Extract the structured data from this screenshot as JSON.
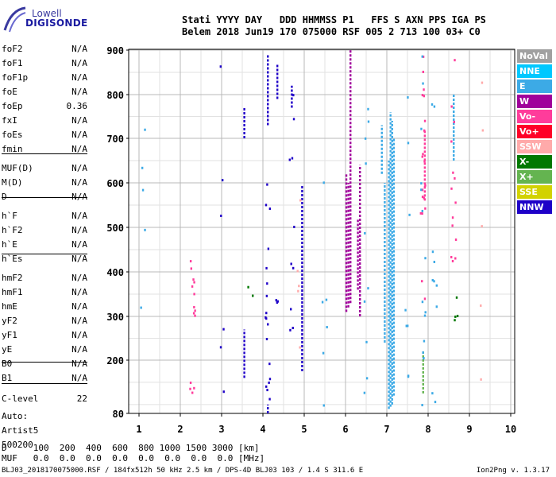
{
  "logo": {
    "line1": "Lowell",
    "line2": "DIGISONDE"
  },
  "header": {
    "line1": "Stati YYYY DAY   DDD HHMMSS P1   FFS S AXN PPS IGA PS",
    "line2": "Belem 2018 Jun19 170 075000 RSF 005 2 713 100 03+ C0"
  },
  "params": [
    {
      "k": "foF2",
      "v": "N/A"
    },
    {
      "k": "foF1",
      "v": "N/A"
    },
    {
      "k": "foF1p",
      "v": "N/A"
    },
    {
      "k": "foE",
      "v": "N/A"
    },
    {
      "k": "foEp",
      "v": "0.36"
    },
    {
      "k": "fxI",
      "v": "N/A"
    },
    {
      "k": "foEs",
      "v": "N/A"
    },
    {
      "k": "fmin",
      "v": "N/A"
    },
    {
      "k": "MUF(D)",
      "v": "N/A"
    },
    {
      "k": "M(D)",
      "v": "N/A"
    },
    {
      "k": "D",
      "v": "N/A"
    },
    {
      "k": "h`F",
      "v": "N/A"
    },
    {
      "k": "h`F2",
      "v": "N/A"
    },
    {
      "k": "h`E",
      "v": "N/A"
    },
    {
      "k": "h`Es",
      "v": "N/A"
    },
    {
      "k": "hmF2",
      "v": "N/A"
    },
    {
      "k": "hmF1",
      "v": "N/A"
    },
    {
      "k": "hmE",
      "v": "N/A"
    },
    {
      "k": "yF2",
      "v": "N/A"
    },
    {
      "k": "yF1",
      "v": "N/A"
    },
    {
      "k": "yE",
      "v": "N/A"
    },
    {
      "k": "B0",
      "v": "N/A"
    },
    {
      "k": "B1",
      "v": "N/A"
    },
    {
      "k": "C-level",
      "v": "22"
    },
    {
      "k": "Auto:",
      "v": ""
    },
    {
      "k": "Artist5",
      "v": ""
    },
    {
      "k": "500200",
      "v": ""
    }
  ],
  "legend": [
    {
      "label": "NoVal",
      "color": "#a0a0a0"
    },
    {
      "label": "NNE",
      "color": "#00c8ff"
    },
    {
      "label": "E",
      "color": "#3caae6"
    },
    {
      "label": "W",
      "color": "#a0009b"
    },
    {
      "label": "Vo-",
      "color": "#ff3c9b"
    },
    {
      "label": "Vo+",
      "color": "#ff0028"
    },
    {
      "label": "SSW",
      "color": "#ffaaaa"
    },
    {
      "label": "X-",
      "color": "#007800"
    },
    {
      "label": "X+",
      "color": "#64b450"
    },
    {
      "label": "SSE",
      "color": "#d2d200"
    },
    {
      "label": "NNW",
      "color": "#1e00c8"
    }
  ],
  "bottom": {
    "line1": "D     100  200  400  600  800 1000 1500 3000 [km]",
    "line2": "MUF   0.0  0.0  0.0  0.0  0.0  0.0  0.0  0.0 [MHz]"
  },
  "footer": {
    "left": "BLJ03_2018170075000.RSF / 184fx512h 50 kHz 2.5 km / DPS-4D BLJ03 103 / 1.4 S 311.6 E",
    "right": "Ion2Png v. 1.3.17"
  },
  "chart_data": {
    "type": "scatter",
    "xlim": [
      0.9,
      10.0
    ],
    "ylim": [
      80,
      900
    ],
    "xticks": [
      1,
      2,
      3,
      4,
      5,
      6,
      7,
      8,
      9,
      10
    ],
    "yticks": [
      80,
      200,
      300,
      400,
      500,
      600,
      700,
      800,
      900
    ],
    "grid": true,
    "xlabel": "",
    "ylabel": "",
    "traces": [
      {
        "x": 7.05,
        "y0": 90,
        "y1": 650,
        "color": "#3caae6"
      },
      {
        "x": 7.09,
        "y0": 95,
        "y1": 760,
        "color": "#3caae6"
      },
      {
        "x": 7.13,
        "y0": 100,
        "y1": 740,
        "color": "#3caae6"
      },
      {
        "x": 7.17,
        "y0": 120,
        "y1": 700,
        "color": "#3caae6"
      },
      {
        "x": 6.95,
        "y0": 240,
        "y1": 600,
        "color": "#3caae6"
      },
      {
        "x": 6.88,
        "y0": 620,
        "y1": 730,
        "color": "#3caae6"
      },
      {
        "x": 6.02,
        "y0": 310,
        "y1": 620,
        "color": "#a0009b"
      },
      {
        "x": 6.07,
        "y0": 320,
        "y1": 600,
        "color": "#a0009b"
      },
      {
        "x": 6.12,
        "y0": 330,
        "y1": 900,
        "color": "#a0009b"
      },
      {
        "x": 6.35,
        "y0": 300,
        "y1": 640,
        "color": "#a0009b"
      },
      {
        "x": 6.3,
        "y0": 360,
        "y1": 520,
        "color": "#a0009b"
      },
      {
        "x": 4.95,
        "y0": 175,
        "y1": 595,
        "color": "#1e00c8"
      },
      {
        "x": 3.55,
        "y0": 160,
        "y1": 270,
        "color": "#1e00c8"
      },
      {
        "x": 3.55,
        "y0": 700,
        "y1": 770,
        "color": "#1e00c8"
      },
      {
        "x": 4.12,
        "y0": 80,
        "y1": 100,
        "color": "#1e00c8"
      },
      {
        "x": 4.12,
        "y0": 730,
        "y1": 890,
        "color": "#1e00c8"
      },
      {
        "x": 4.35,
        "y0": 790,
        "y1": 870,
        "color": "#1e00c8"
      },
      {
        "x": 4.7,
        "y0": 770,
        "y1": 820,
        "color": "#1e00c8"
      },
      {
        "x": 7.88,
        "y0": 125,
        "y1": 220,
        "color": "#64b450"
      },
      {
        "x": 7.92,
        "y0": 560,
        "y1": 720,
        "color": "#ff3c9b"
      },
      {
        "x": 8.62,
        "y0": 650,
        "y1": 800,
        "color": "#3caae6"
      }
    ]
  }
}
